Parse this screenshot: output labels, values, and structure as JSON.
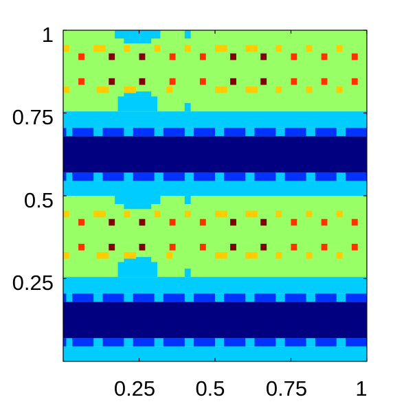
{
  "chart_data": {
    "type": "heatmap",
    "title": "",
    "xlabel": "",
    "ylabel": "",
    "xlim": [
      0,
      1
    ],
    "ylim": [
      0,
      1
    ],
    "grid": false,
    "legend": "none",
    "colormap": "jet",
    "xticks": [
      {
        "value": 0.25,
        "label": "0.25"
      },
      {
        "value": 0.5,
        "label": "0.5"
      },
      {
        "value": 0.75,
        "label": "0.75"
      },
      {
        "value": 1,
        "label": "1"
      }
    ],
    "yticks": [
      {
        "value": 0.25,
        "label": "0.25"
      },
      {
        "value": 0.5,
        "label": "0.5"
      },
      {
        "value": 0.75,
        "label": "0.75"
      },
      {
        "value": 1,
        "label": "1"
      }
    ],
    "colors": {
      "level_1": "#000080",
      "level_2": "#0033ff",
      "level_3": "#00ccff",
      "level_4": "#99ff66",
      "level_5": "#ffcc00",
      "level_6": "#ff3300",
      "level_7": "#800000"
    },
    "pattern_period_y": 0.5,
    "bands": [
      {
        "y0": 0.0,
        "y1": 0.045,
        "level": 3
      },
      {
        "y0": 0.045,
        "y1": 0.07,
        "level": 2,
        "dashed": true
      },
      {
        "y0": 0.07,
        "y1": 0.18,
        "level": 1
      },
      {
        "y0": 0.18,
        "y1": 0.205,
        "level": 2,
        "dashed": true
      },
      {
        "y0": 0.205,
        "y1": 0.255,
        "level": 3
      },
      {
        "y0": 0.255,
        "y1": 0.5,
        "level": 4
      }
    ],
    "dash_x": [
      [
        0.0,
        0.01
      ],
      [
        0.03,
        0.1
      ],
      [
        0.13,
        0.2
      ],
      [
        0.23,
        0.3
      ],
      [
        0.33,
        0.4
      ],
      [
        0.43,
        0.5
      ],
      [
        0.53,
        0.6
      ],
      [
        0.63,
        0.7
      ],
      [
        0.73,
        0.8
      ],
      [
        0.83,
        0.9
      ],
      [
        0.93,
        1.0
      ]
    ],
    "bulges": [
      {
        "x0": 0.18,
        "x1": 0.31,
        "y0": 0.255,
        "y1": 0.3,
        "level": 3
      },
      {
        "x0": 0.2,
        "x1": 0.29,
        "y0": 0.3,
        "y1": 0.315,
        "level": 3
      },
      {
        "x0": 0.17,
        "x1": 0.32,
        "y0": 0.475,
        "y1": 0.5,
        "level": 3
      },
      {
        "x0": 0.2,
        "x1": 0.29,
        "y0": 0.46,
        "y1": 0.475,
        "level": 3
      },
      {
        "x0": 0.4,
        "x1": 0.42,
        "y0": 0.475,
        "y1": 0.5,
        "level": 3
      },
      {
        "x0": 0.4,
        "x1": 0.42,
        "y0": 0.255,
        "y1": 0.28,
        "level": 3
      }
    ],
    "spot_rows": [
      {
        "y": 0.32,
        "spots": [
          {
            "x": 0.01,
            "level": 5
          },
          {
            "x": 0.12,
            "level": 5
          },
          {
            "x": 0.14,
            "level": 5
          },
          {
            "x": 0.21,
            "level": 5
          },
          {
            "x": 0.23,
            "level": 5
          },
          {
            "x": 0.35,
            "level": 5
          },
          {
            "x": 0.51,
            "level": 5
          },
          {
            "x": 0.53,
            "level": 5
          },
          {
            "x": 0.61,
            "level": 5
          },
          {
            "x": 0.63,
            "level": 5
          },
          {
            "x": 0.71,
            "level": 5
          },
          {
            "x": 0.81,
            "level": 5
          },
          {
            "x": 0.91,
            "level": 5
          }
        ]
      },
      {
        "y": 0.345,
        "spots": [
          {
            "x": 0.06,
            "level": 6
          },
          {
            "x": 0.16,
            "level": 7
          },
          {
            "x": 0.26,
            "level": 7
          },
          {
            "x": 0.36,
            "level": 6
          },
          {
            "x": 0.46,
            "level": 6
          },
          {
            "x": 0.56,
            "level": 7
          },
          {
            "x": 0.66,
            "level": 7
          },
          {
            "x": 0.76,
            "level": 6
          },
          {
            "x": 0.86,
            "level": 6
          },
          {
            "x": 0.96,
            "level": 6
          }
        ]
      },
      {
        "y": 0.42,
        "spots": [
          {
            "x": 0.06,
            "level": 6
          },
          {
            "x": 0.16,
            "level": 7
          },
          {
            "x": 0.26,
            "level": 7
          },
          {
            "x": 0.36,
            "level": 6
          },
          {
            "x": 0.46,
            "level": 6
          },
          {
            "x": 0.56,
            "level": 7
          },
          {
            "x": 0.66,
            "level": 7
          },
          {
            "x": 0.76,
            "level": 6
          },
          {
            "x": 0.86,
            "level": 6
          },
          {
            "x": 0.96,
            "level": 6
          }
        ]
      },
      {
        "y": 0.445,
        "spots": [
          {
            "x": 0.01,
            "level": 5
          },
          {
            "x": 0.11,
            "level": 5
          },
          {
            "x": 0.13,
            "level": 5
          },
          {
            "x": 0.21,
            "level": 5
          },
          {
            "x": 0.31,
            "level": 5
          },
          {
            "x": 0.41,
            "level": 5
          },
          {
            "x": 0.51,
            "level": 5
          },
          {
            "x": 0.53,
            "level": 5
          },
          {
            "x": 0.61,
            "level": 5
          },
          {
            "x": 0.63,
            "level": 5
          },
          {
            "x": 0.71,
            "level": 5
          },
          {
            "x": 0.81,
            "level": 5
          },
          {
            "x": 0.91,
            "level": 5
          }
        ]
      }
    ]
  }
}
